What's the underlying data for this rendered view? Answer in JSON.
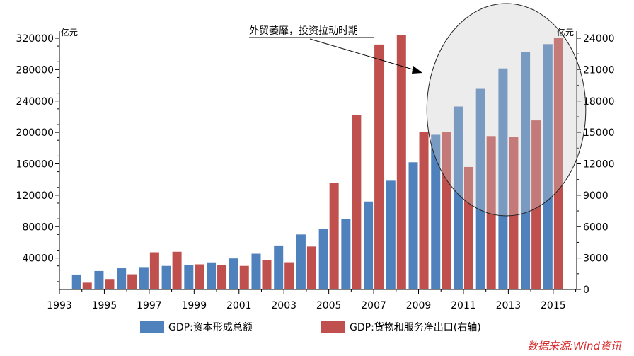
{
  "chart_data": {
    "type": "bar",
    "title": "",
    "y_left": {
      "label": "亿元",
      "ylim": [
        0,
        320000
      ],
      "ticks": [
        "40000",
        "80000",
        "120000",
        "160000",
        "200000",
        "240000",
        "280000",
        "320000"
      ]
    },
    "y_right": {
      "label": "亿元",
      "ylim": [
        0,
        24000
      ],
      "ticks": [
        "0",
        "3000",
        "6000",
        "9000",
        "12000",
        "15000",
        "18000",
        "21000",
        "24000"
      ]
    },
    "x_ticks": [
      "1993",
      "1995",
      "1997",
      "1999",
      "2001",
      "2003",
      "2005",
      "2007",
      "2009",
      "2011",
      "2013",
      "2015"
    ],
    "categories": [
      "1994",
      "1995",
      "1996",
      "1997",
      "1998",
      "1999",
      "2000",
      "2001",
      "2002",
      "2003",
      "2004",
      "2005",
      "2006",
      "2007",
      "2008",
      "2009",
      "2010",
      "2011",
      "2012",
      "2013",
      "2014",
      "2015"
    ],
    "series": [
      {
        "name": "GDP:资本形成总额",
        "axis": "left",
        "color": "#4f81bd",
        "values": [
          19000,
          23500,
          27000,
          28500,
          30000,
          31500,
          34500,
          39500,
          45500,
          56000,
          70000,
          77500,
          89500,
          112000,
          138500,
          162000,
          197000,
          233000,
          255500,
          281500,
          302000,
          312500
        ]
      },
      {
        "name": "GDP:货物和服务净出口(右轴)",
        "axis": "right",
        "color": "#c0504d",
        "values": [
          650,
          1000,
          1450,
          3550,
          3600,
          2400,
          2300,
          2250,
          2800,
          2600,
          4100,
          10200,
          16650,
          23400,
          24300,
          15050,
          15050,
          11700,
          14650,
          14550,
          16150,
          24000
        ]
      }
    ],
    "grid": false,
    "legend": "bottom",
    "annotation": {
      "text": "外贸萎靡，投资拉动时期",
      "highlight_from": "2010",
      "highlight_to": "2015"
    }
  },
  "source_text": "数据来源:Wind资讯"
}
